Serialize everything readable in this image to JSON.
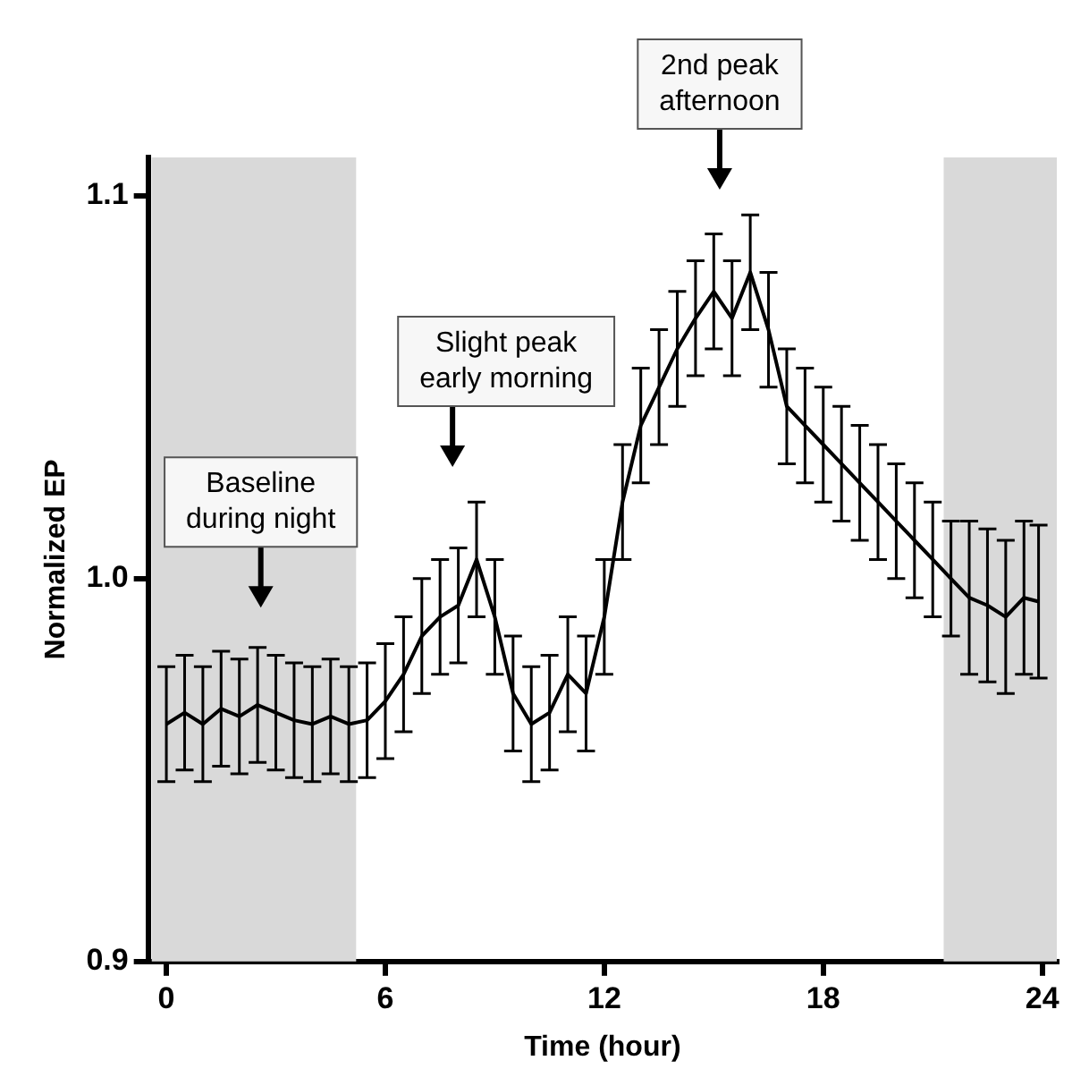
{
  "chart_data": {
    "type": "line",
    "xlabel": "Time (hour)",
    "ylabel": "Normalized EP",
    "x": [
      0,
      0.5,
      1,
      1.5,
      2,
      2.5,
      3,
      3.5,
      4,
      4.5,
      5,
      5.5,
      6,
      6.5,
      7,
      7.5,
      8,
      8.5,
      9,
      9.5,
      10,
      10.5,
      11,
      11.5,
      12,
      12.5,
      13,
      13.5,
      14,
      14.5,
      15,
      15.5,
      16,
      16.5,
      17,
      17.5,
      18,
      18.5,
      19,
      19.5,
      20,
      20.5,
      21,
      21.5,
      22,
      22.5,
      23,
      23.5,
      23.9
    ],
    "series": [
      {
        "color": "#000000",
        "values": [
          0.962,
          0.965,
          0.962,
          0.966,
          0.964,
          0.967,
          0.965,
          0.963,
          0.962,
          0.964,
          0.962,
          0.963,
          0.968,
          0.975,
          0.985,
          0.99,
          0.993,
          1.005,
          0.99,
          0.97,
          0.962,
          0.965,
          0.975,
          0.97,
          0.99,
          1.02,
          1.04,
          1.05,
          1.06,
          1.068,
          1.075,
          1.068,
          1.08,
          1.065,
          1.045,
          1.04,
          1.035,
          1.03,
          1.025,
          1.02,
          1.015,
          1.01,
          1.005,
          1.0,
          0.995,
          0.993,
          0.99,
          0.995,
          0.994
        ],
        "errors": [
          0.015,
          0.015,
          0.015,
          0.015,
          0.015,
          0.015,
          0.015,
          0.015,
          0.015,
          0.015,
          0.015,
          0.015,
          0.015,
          0.015,
          0.015,
          0.015,
          0.015,
          0.015,
          0.015,
          0.015,
          0.015,
          0.015,
          0.015,
          0.015,
          0.015,
          0.015,
          0.015,
          0.015,
          0.015,
          0.015,
          0.015,
          0.015,
          0.015,
          0.015,
          0.015,
          0.015,
          0.015,
          0.015,
          0.015,
          0.015,
          0.015,
          0.015,
          0.015,
          0.015,
          0.02,
          0.02,
          0.02,
          0.02,
          0.02
        ]
      }
    ],
    "xlim": [
      -0.5,
      24.4
    ],
    "xticks": [
      0,
      6,
      12,
      18,
      24
    ],
    "ylim": [
      0.9,
      1.11
    ],
    "yticks": [
      0.9,
      {
        "value": 1,
        "label": "1.0"
      },
      1.1
    ],
    "bands": [
      {
        "axis": "x",
        "from": -0.4,
        "to": 5.2,
        "color": "#d9d9d9"
      },
      {
        "axis": "x",
        "from": 21.3,
        "to": 24.4,
        "color": "#d9d9d9"
      }
    ],
    "annotations": [
      "Baseline during night",
      "Slight peak early morning",
      "2nd peak afternoon"
    ],
    "grid": false,
    "legend": false,
    "marker": "none",
    "line_style": "solid"
  }
}
